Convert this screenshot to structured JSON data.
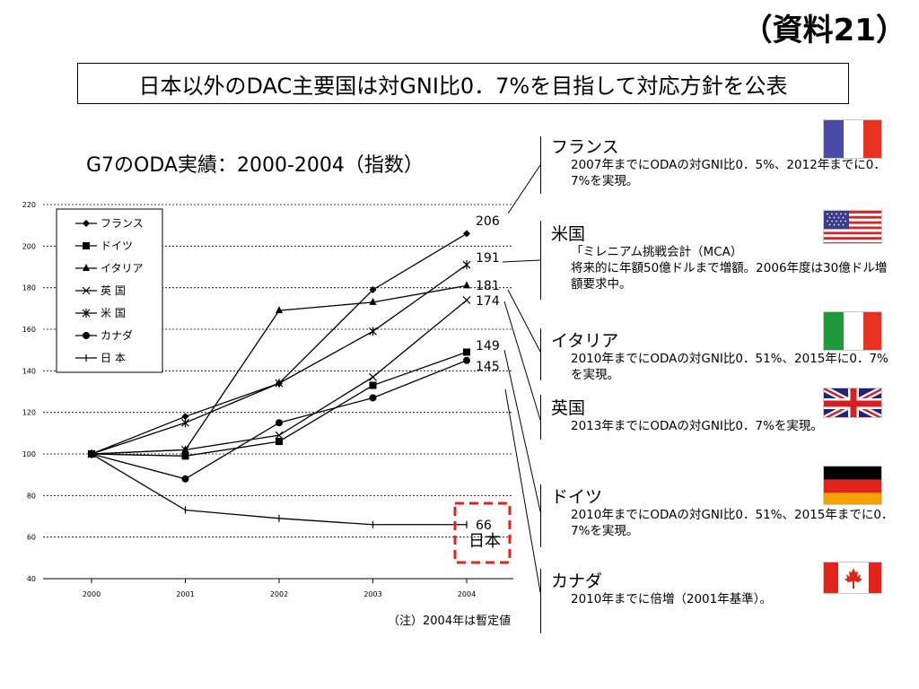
{
  "slide": {
    "title": "（資料21）",
    "headline": "日本以外のDAC主要国は対GNI比0．7%を目指して対応方針を公表"
  },
  "chart_data": {
    "type": "line",
    "title": "G7のODA実績：2000-2004（指数）",
    "note": "（注）2004年は暫定値",
    "x": [
      "2000",
      "2001",
      "2002",
      "2003",
      "2004"
    ],
    "ylim": [
      40,
      220
    ],
    "yticks": [
      "40",
      "60",
      "80",
      "100",
      "120",
      "140",
      "160",
      "180",
      "200",
      "220"
    ],
    "grid": true,
    "legend_position": "top-left",
    "series": [
      {
        "name": "フランス",
        "marker": "diamond",
        "values": [
          100,
          118,
          134,
          179,
          206
        ],
        "end_label": "206"
      },
      {
        "name": "ドイツ",
        "marker": "square",
        "values": [
          100,
          99,
          106,
          133,
          149
        ],
        "end_label": "149"
      },
      {
        "name": "イタリア",
        "marker": "triangle",
        "values": [
          100,
          102,
          169,
          173,
          181
        ],
        "end_label": "181"
      },
      {
        "name": "英 国",
        "marker": "x",
        "values": [
          100,
          102,
          109,
          137,
          174
        ],
        "end_label": "174"
      },
      {
        "name": "米 国",
        "marker": "star",
        "values": [
          100,
          115,
          134,
          159,
          191
        ],
        "end_label": "191"
      },
      {
        "name": "カナダ",
        "marker": "circle",
        "values": [
          100,
          88,
          115,
          127,
          145
        ],
        "end_label": "145"
      },
      {
        "name": "日 本",
        "marker": "plus",
        "values": [
          100,
          73,
          69,
          66,
          66
        ],
        "end_label": "66"
      }
    ],
    "highlight_label": "日本",
    "highlight_color": "#e2231a"
  },
  "countries": [
    {
      "name": "フランス",
      "desc": "2007年までにODAの対GNI比0．5%、2012年までに0．7%を実現。",
      "flag": "france-flag"
    },
    {
      "name": "米国",
      "desc_lines": [
        "「ミレニアム挑戦会計（MCA）",
        "将来的に年額50億ドルまで増額。2006年度は30億ドル増額要求中。"
      ],
      "flag": "usa-flag"
    },
    {
      "name": "イタリア",
      "desc": "2010年までにODAの対GNI比0．51%、2015年に0．7%を実現。",
      "flag": "italy-flag"
    },
    {
      "name": "英国",
      "desc": "2013年までにODAの対GNI比0．7%を実現。",
      "flag": "uk-flag"
    },
    {
      "name": "ドイツ",
      "desc": "2010年までにODAの対GNI比0．51%、2015年までに0．7%を実現。",
      "flag": "germany-flag"
    },
    {
      "name": "カナダ",
      "desc": "2010年までに倍増（2001年基準）。",
      "flag": "canada-flag"
    }
  ],
  "colors": {
    "line": "#000000",
    "grid": "#000000",
    "highlight": "#e2231a",
    "france_blue": "#4a4aa8",
    "france_red": "#e8321f",
    "italy_green": "#1f9a3a",
    "italy_red": "#e8321f",
    "germany_red": "#e2231a",
    "germany_gold": "#f2a300",
    "canada_red": "#e2231a",
    "us_red": "#cf2a2a",
    "us_blue": "#3b3b8f",
    "uk_blue": "#23237a",
    "uk_red": "#d42020"
  }
}
